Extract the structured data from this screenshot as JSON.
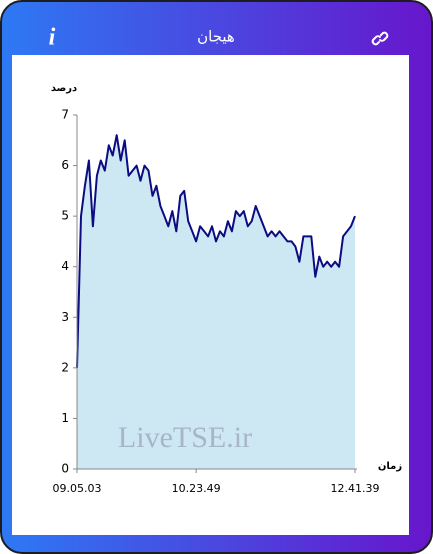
{
  "header": {
    "info_icon": "i",
    "title": "هیجان"
  },
  "chart_data": {
    "type": "area",
    "y_label": "درصد",
    "x_label": "زمان",
    "watermark": "LiveTSE.ir",
    "categories": [
      "09.05.03",
      null,
      null,
      null,
      null,
      null,
      null,
      null,
      null,
      null,
      null,
      null,
      null,
      null,
      null,
      null,
      null,
      null,
      null,
      null,
      null,
      null,
      null,
      null,
      null,
      null,
      null,
      null,
      null,
      null,
      "10.23.49",
      null,
      null,
      null,
      null,
      null,
      null,
      null,
      null,
      null,
      null,
      null,
      null,
      null,
      null,
      null,
      null,
      null,
      null,
      null,
      null,
      null,
      null,
      null,
      null,
      null,
      null,
      null,
      null,
      null,
      null,
      null,
      null,
      null,
      null,
      null,
      null,
      null,
      null,
      null,
      "12.41.39"
    ],
    "values": [
      2.0,
      5.0,
      5.6,
      6.1,
      4.8,
      5.8,
      6.1,
      5.9,
      6.4,
      6.2,
      6.6,
      6.1,
      6.5,
      5.8,
      5.9,
      6.0,
      5.7,
      6.0,
      5.9,
      5.4,
      5.6,
      5.2,
      5.0,
      4.8,
      5.1,
      4.7,
      5.4,
      5.5,
      4.9,
      4.7,
      4.5,
      4.8,
      4.7,
      4.6,
      4.8,
      4.5,
      4.7,
      4.6,
      4.9,
      4.7,
      5.1,
      5.0,
      5.1,
      4.8,
      4.9,
      5.2,
      5.0,
      4.8,
      4.6,
      4.7,
      4.6,
      4.7,
      4.6,
      4.5,
      4.5,
      4.4,
      4.1,
      4.6,
      4.6,
      4.6,
      3.8,
      4.2,
      4.0,
      4.1,
      4.0,
      4.1,
      4.0,
      4.6,
      4.7,
      4.8,
      5.0
    ],
    "color": "#0b0b82",
    "fill": "#cde8f3",
    "ylim": [
      0,
      7
    ],
    "yticks": [
      0,
      1,
      2,
      3,
      4,
      5,
      6,
      7
    ]
  }
}
